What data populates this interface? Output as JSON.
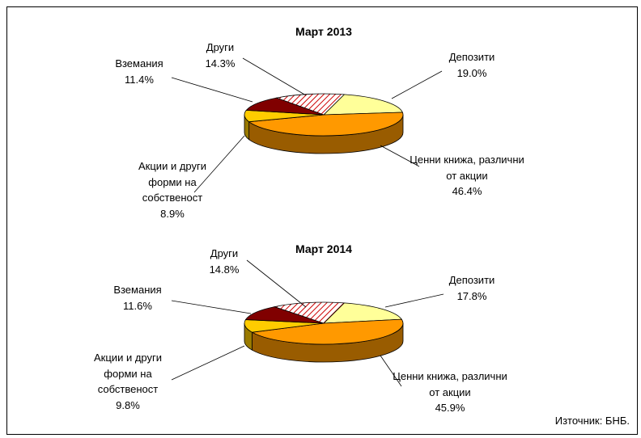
{
  "chart_data": [
    {
      "type": "pie",
      "title": "Март 2013",
      "categories": [
        "Депозити",
        "Ценни книжа, различни от акции",
        "Акции и други форми на собственост",
        "Вземания",
        "Други"
      ],
      "values": [
        19.0,
        46.4,
        8.9,
        11.4,
        14.3
      ],
      "value_labels": [
        "19.0%",
        "46.4%",
        "8.9%",
        "11.4%",
        "14.3%"
      ],
      "colors": [
        "#ffff99",
        "#ff9900",
        "#ffcc00",
        "#800000",
        "#ffffff"
      ],
      "hatch": [
        false,
        false,
        false,
        false,
        true
      ],
      "hatch_color": "#cc0000"
    },
    {
      "type": "pie",
      "title": "Март 2014",
      "categories": [
        "Депозити",
        "Ценни книжа, различни от акции",
        "Акции и други форми на собственост",
        "Вземания",
        "Други"
      ],
      "values": [
        17.8,
        45.9,
        9.8,
        11.6,
        14.8
      ],
      "value_labels": [
        "17.8%",
        "45.9%",
        "9.8%",
        "11.6%",
        "14.8%"
      ],
      "colors": [
        "#ffff99",
        "#ff9900",
        "#ffcc00",
        "#800000",
        "#ffffff"
      ],
      "hatch": [
        false,
        false,
        false,
        false,
        true
      ],
      "hatch_color": "#cc0000"
    }
  ],
  "source": "Източник: БНБ."
}
